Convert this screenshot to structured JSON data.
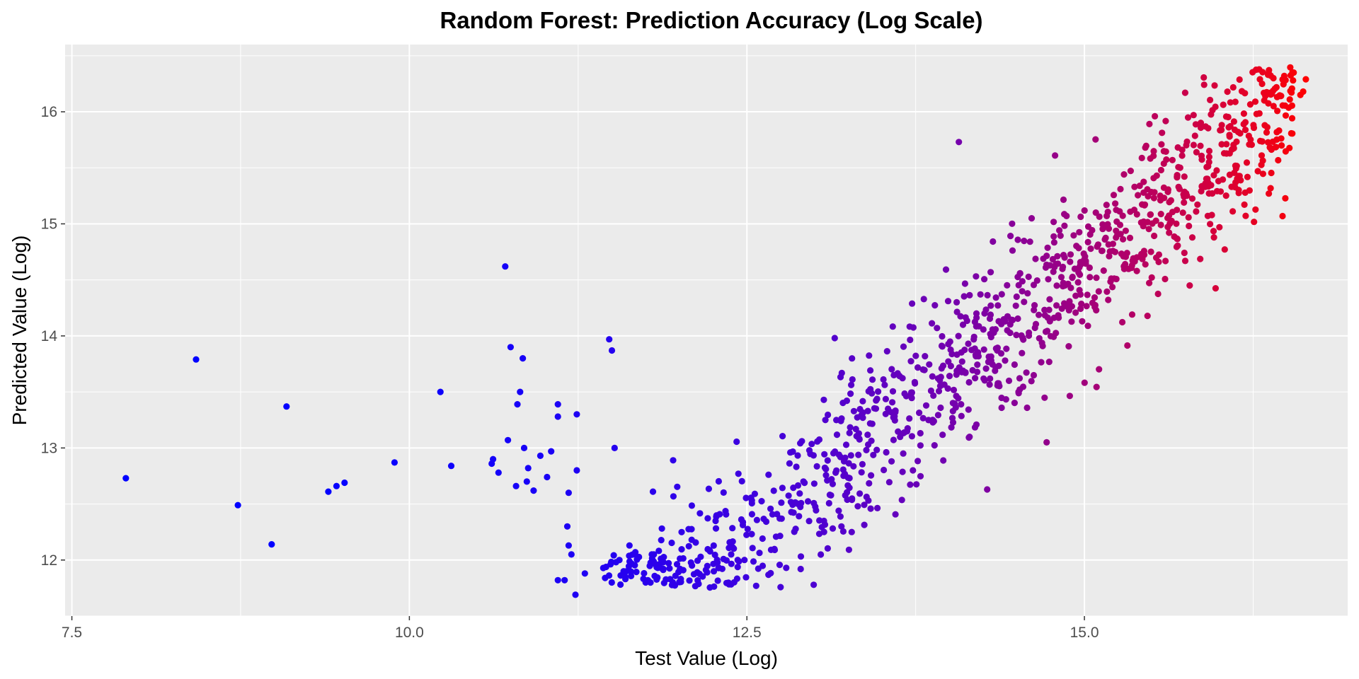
{
  "chart_data": {
    "type": "scatter",
    "title": "Random Forest: Prediction Accuracy (Log Scale)",
    "xlabel": "Test Value (Log)",
    "ylabel": "Predicted Value (Log)",
    "xlim": [
      7.45,
      16.95
    ],
    "ylim": [
      11.5,
      16.6
    ],
    "x_ticks": [
      7.5,
      10.0,
      12.5,
      15.0
    ],
    "x_tick_labels": [
      "7.5",
      "10.0",
      "12.5",
      "15.0"
    ],
    "y_ticks": [
      12,
      13,
      14,
      15,
      16
    ],
    "y_tick_labels": [
      "12",
      "13",
      "14",
      "15",
      "16"
    ],
    "grid": true,
    "legend": "none",
    "panel_background": "#ebebeb",
    "grid_color": "#ffffff",
    "color_scale": {
      "low": "#0000ff",
      "high": "#ff0000",
      "mapped_to": "x"
    },
    "outliers": [
      {
        "x": 7.9,
        "y": 12.73
      },
      {
        "x": 8.42,
        "y": 13.79
      },
      {
        "x": 8.73,
        "y": 12.49
      },
      {
        "x": 8.98,
        "y": 12.14
      },
      {
        "x": 9.09,
        "y": 13.37
      },
      {
        "x": 9.4,
        "y": 12.61
      },
      {
        "x": 9.46,
        "y": 12.66
      },
      {
        "x": 9.52,
        "y": 12.69
      },
      {
        "x": 9.89,
        "y": 12.87
      },
      {
        "x": 10.23,
        "y": 13.5
      },
      {
        "x": 10.31,
        "y": 12.84
      },
      {
        "x": 10.61,
        "y": 12.86
      },
      {
        "x": 10.62,
        "y": 12.9
      },
      {
        "x": 10.66,
        "y": 12.78
      },
      {
        "x": 10.71,
        "y": 14.62
      },
      {
        "x": 10.73,
        "y": 13.07
      },
      {
        "x": 10.75,
        "y": 13.9
      },
      {
        "x": 10.79,
        "y": 12.66
      },
      {
        "x": 10.8,
        "y": 13.39
      },
      {
        "x": 10.82,
        "y": 13.5
      },
      {
        "x": 10.84,
        "y": 13.8
      },
      {
        "x": 10.85,
        "y": 13.0
      },
      {
        "x": 10.87,
        "y": 12.7
      },
      {
        "x": 10.88,
        "y": 12.82
      },
      {
        "x": 10.92,
        "y": 12.62
      },
      {
        "x": 10.97,
        "y": 12.93
      },
      {
        "x": 11.02,
        "y": 12.74
      },
      {
        "x": 11.05,
        "y": 12.97
      },
      {
        "x": 11.1,
        "y": 13.39
      },
      {
        "x": 11.1,
        "y": 13.28
      },
      {
        "x": 11.1,
        "y": 11.82
      },
      {
        "x": 11.15,
        "y": 11.82
      },
      {
        "x": 11.17,
        "y": 12.3
      },
      {
        "x": 11.18,
        "y": 12.13
      },
      {
        "x": 11.18,
        "y": 12.6
      },
      {
        "x": 11.2,
        "y": 12.05
      },
      {
        "x": 11.23,
        "y": 11.69
      },
      {
        "x": 11.24,
        "y": 13.3
      },
      {
        "x": 11.24,
        "y": 12.8
      },
      {
        "x": 11.3,
        "y": 11.88
      },
      {
        "x": 11.45,
        "y": 11.84
      },
      {
        "x": 11.48,
        "y": 13.97
      },
      {
        "x": 11.5,
        "y": 13.87
      },
      {
        "x": 11.52,
        "y": 13.0
      },
      {
        "x": 11.6,
        "y": 11.83
      },
      {
        "x": 11.63,
        "y": 12.13
      },
      {
        "x": 11.75,
        "y": 11.8
      },
      {
        "x": 11.84,
        "y": 11.93
      },
      {
        "x": 14.07,
        "y": 15.73
      },
      {
        "x": 14.28,
        "y": 12.63
      },
      {
        "x": 14.72,
        "y": 13.05
      },
      {
        "x": 16.0,
        "y": 14.97
      },
      {
        "x": 15.78,
        "y": 14.45
      },
      {
        "x": 15.55,
        "y": 14.66
      },
      {
        "x": 13.73,
        "y": 12.8
      },
      {
        "x": 13.18,
        "y": 12.44
      }
    ],
    "bulk_trend": {
      "x_range": [
        11.4,
        16.55
      ],
      "fit": "y = 0.36 + 0.95 * x",
      "spread_sd": 0.38,
      "point_count": 1100,
      "top_cluster": [
        {
          "x": 16.55,
          "y": 16.35
        },
        {
          "x": 16.48,
          "y": 16.32
        },
        {
          "x": 16.36,
          "y": 16.33
        },
        {
          "x": 16.3,
          "y": 16.29
        },
        {
          "x": 16.6,
          "y": 16.15
        },
        {
          "x": 16.62,
          "y": 16.18
        },
        {
          "x": 16.64,
          "y": 16.29
        },
        {
          "x": 16.4,
          "y": 16.3
        }
      ]
    }
  }
}
